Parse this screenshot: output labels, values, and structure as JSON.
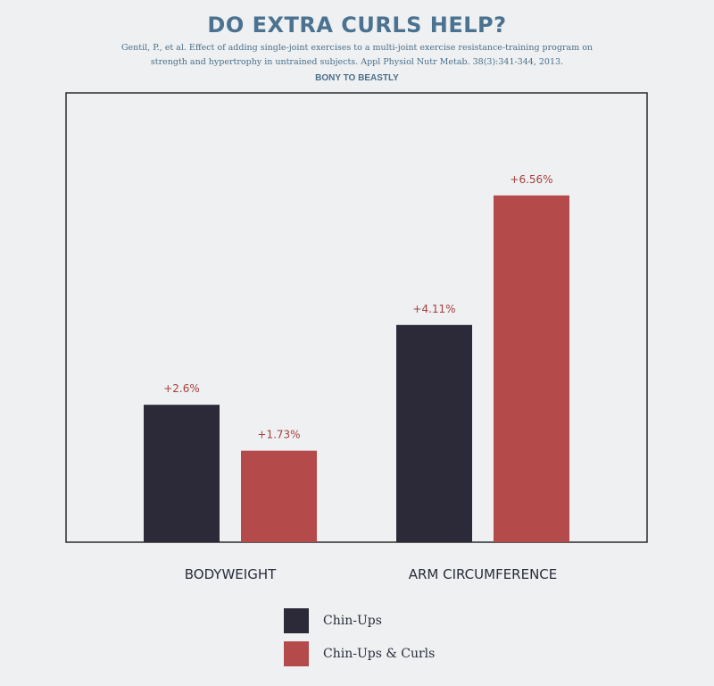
{
  "header": {
    "title": "DO EXTRA CURLS HELP?",
    "citation_line1": "Gentil, P., et al.  Effect of adding single-joint exercises to a multi-joint exercise resistance-training program on",
    "citation_line2": "strength and hypertrophy in untrained subjects.  Appl Physiol Nutr Metab.  38(3):341-344, 2013.",
    "credit": "BONY TO BEASTLY"
  },
  "colors": {
    "background": "#eef0f1",
    "title": "#4b7290",
    "chin_ups": "#2c2a38",
    "chin_ups_curls": "#b44a4a",
    "value_label": "#a4403f",
    "axis_text": "#2a2c3a"
  },
  "chart_data": {
    "type": "bar",
    "categories": [
      "BODYWEIGHT",
      "ARM CIRCUMFERENCE"
    ],
    "series": [
      {
        "name": "Chin-Ups",
        "values": [
          2.6,
          4.11
        ],
        "labels": [
          "+2.6%",
          "+4.11%"
        ],
        "color": "#2c2a38"
      },
      {
        "name": "Chin-Ups & Curls",
        "values": [
          1.73,
          6.56
        ],
        "labels": [
          "+1.73%",
          "+6.56%"
        ],
        "color": "#b44a4a"
      }
    ],
    "title": "DO EXTRA CURLS HELP?",
    "xlabel": "",
    "ylabel": "",
    "ylim": [
      0,
      8.5
    ],
    "grid": false,
    "legend": "bottom"
  },
  "legend": {
    "items": [
      {
        "label": "Chin-Ups",
        "color": "#2c2a38"
      },
      {
        "label": "Chin-Ups & Curls",
        "color": "#b44a4a"
      }
    ]
  }
}
